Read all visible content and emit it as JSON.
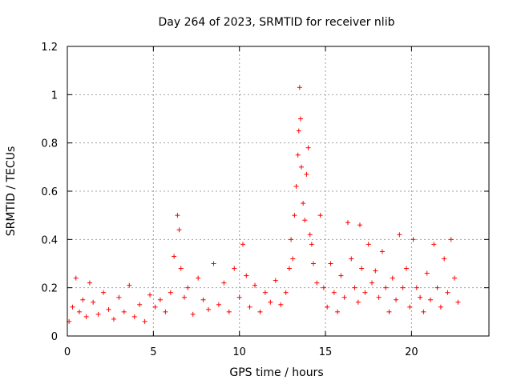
{
  "chart_data": {
    "type": "scatter",
    "title": "Day 264 of 2023, SRMTID for receiver nlib",
    "xlabel": "GPS time / hours",
    "ylabel": "SRMTID / TECUs",
    "xlim": [
      0,
      24.5
    ],
    "ylim": [
      0,
      1.2
    ],
    "xticks": [
      0,
      5,
      10,
      15,
      20
    ],
    "yticks": [
      0,
      0.2,
      0.4,
      0.6,
      0.8,
      1,
      1.2
    ],
    "xtick_labels": [
      "0",
      "5",
      "10",
      "15",
      "20"
    ],
    "ytick_labels": [
      "0",
      "0.2",
      "0.4",
      "0.6",
      "0.8",
      "1",
      "1.2"
    ],
    "grid": true,
    "marker": "+",
    "color": "#ff0000",
    "series": [
      {
        "name": "SRMTID",
        "x": [
          0.1,
          0.3,
          0.5,
          0.7,
          0.9,
          1.1,
          1.3,
          1.5,
          1.8,
          2.1,
          2.4,
          2.7,
          3.0,
          3.3,
          3.6,
          3.9,
          4.2,
          4.5,
          4.8,
          5.1,
          5.4,
          5.7,
          6.0,
          6.2,
          6.4,
          6.5,
          6.6,
          6.8,
          7.0,
          7.3,
          7.6,
          7.9,
          8.2,
          8.5,
          8.8,
          9.1,
          9.4,
          9.7,
          10.0,
          10.2,
          10.4,
          10.6,
          10.9,
          11.2,
          11.5,
          11.8,
          12.1,
          12.4,
          12.7,
          12.9,
          13.0,
          13.1,
          13.2,
          13.3,
          13.4,
          13.45,
          13.5,
          13.55,
          13.6,
          13.7,
          13.8,
          13.9,
          14.0,
          14.1,
          14.2,
          14.3,
          14.5,
          14.7,
          14.9,
          15.1,
          15.3,
          15.5,
          15.7,
          15.9,
          16.1,
          16.3,
          16.5,
          16.7,
          16.9,
          17.0,
          17.1,
          17.3,
          17.5,
          17.7,
          17.9,
          18.1,
          18.3,
          18.5,
          18.7,
          18.9,
          19.1,
          19.3,
          19.5,
          19.7,
          19.9,
          20.1,
          20.3,
          20.5,
          20.7,
          20.9,
          21.1,
          21.3,
          21.5,
          21.7,
          21.9,
          22.1,
          22.3,
          22.5,
          22.7
        ],
        "y": [
          0.06,
          0.12,
          0.24,
          0.1,
          0.15,
          0.08,
          0.22,
          0.14,
          0.09,
          0.18,
          0.11,
          0.07,
          0.16,
          0.1,
          0.21,
          0.08,
          0.13,
          0.06,
          0.17,
          0.12,
          0.15,
          0.1,
          0.18,
          0.33,
          0.5,
          0.44,
          0.28,
          0.16,
          0.2,
          0.09,
          0.24,
          0.15,
          0.11,
          0.3,
          0.13,
          0.22,
          0.1,
          0.28,
          0.16,
          0.38,
          0.25,
          0.12,
          0.21,
          0.1,
          0.18,
          0.14,
          0.23,
          0.13,
          0.18,
          0.28,
          0.4,
          0.32,
          0.5,
          0.62,
          0.75,
          0.85,
          1.03,
          0.9,
          0.7,
          0.55,
          0.48,
          0.67,
          0.78,
          0.42,
          0.38,
          0.3,
          0.22,
          0.5,
          0.2,
          0.12,
          0.3,
          0.18,
          0.1,
          0.25,
          0.16,
          0.47,
          0.32,
          0.2,
          0.14,
          0.46,
          0.28,
          0.18,
          0.38,
          0.22,
          0.27,
          0.16,
          0.35,
          0.2,
          0.1,
          0.24,
          0.15,
          0.42,
          0.2,
          0.28,
          0.12,
          0.4,
          0.2,
          0.16,
          0.1,
          0.26,
          0.15,
          0.38,
          0.2,
          0.12,
          0.32,
          0.18,
          0.4,
          0.24,
          0.14
        ]
      }
    ]
  }
}
